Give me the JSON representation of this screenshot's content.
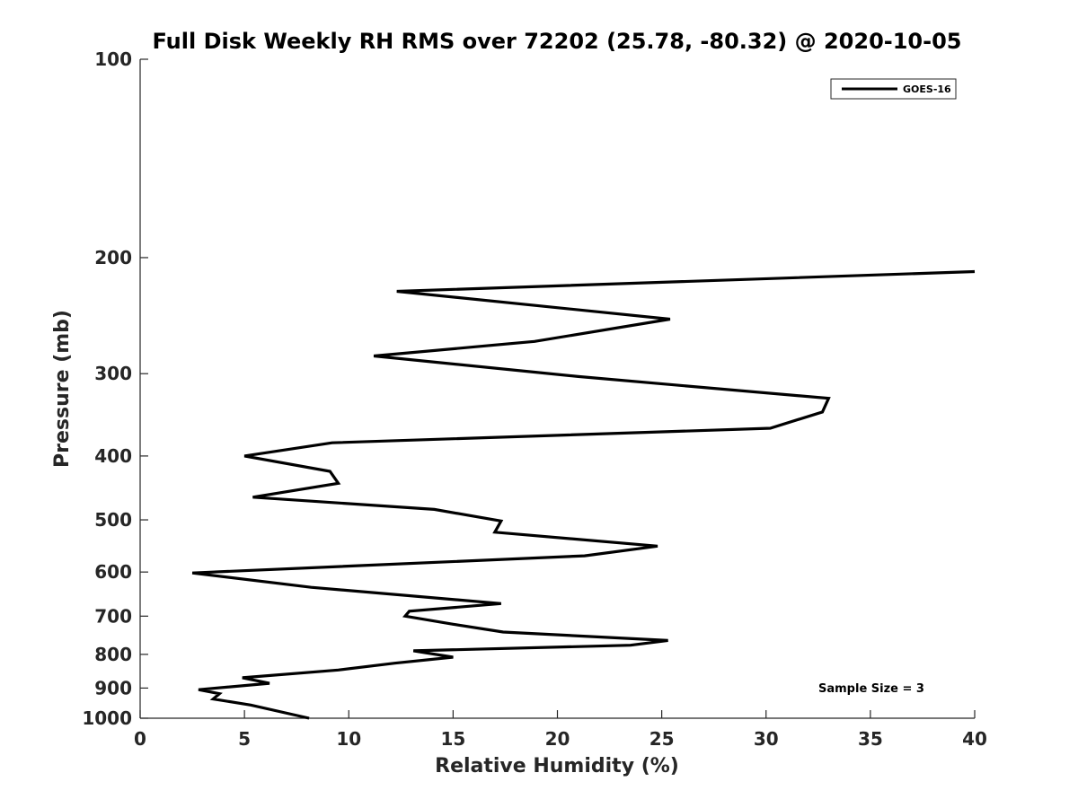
{
  "chart_data": {
    "type": "line",
    "title": "Full Disk Weekly RH RMS over 72202 (25.78, -80.32) @ 2020-10-05",
    "xlabel": "Relative Humidity (%)",
    "ylabel": "Pressure (mb)",
    "xlim": [
      0,
      40
    ],
    "ylim": [
      100,
      1000
    ],
    "yscale": "log",
    "y_reversed": true,
    "xticks": [
      0,
      5,
      10,
      15,
      20,
      25,
      30,
      35,
      40
    ],
    "yticks": [
      100,
      200,
      300,
      400,
      500,
      600,
      700,
      800,
      900,
      1000
    ],
    "grid": false,
    "legend_position": "top-right",
    "series": [
      {
        "name": "GOES-16",
        "color": "#000000",
        "points": [
          [
            40.0,
            210
          ],
          [
            12.3,
            225
          ],
          [
            25.4,
            248
          ],
          [
            18.9,
            268
          ],
          [
            11.2,
            282
          ],
          [
            21.0,
            303
          ],
          [
            33.0,
            327
          ],
          [
            32.7,
            343
          ],
          [
            30.2,
            363
          ],
          [
            9.2,
            382
          ],
          [
            5.0,
            400
          ],
          [
            9.1,
            422
          ],
          [
            9.5,
            440
          ],
          [
            5.4,
            462
          ],
          [
            14.1,
            482
          ],
          [
            17.3,
            502
          ],
          [
            17.0,
            522
          ],
          [
            24.8,
            548
          ],
          [
            21.3,
            567
          ],
          [
            2.5,
            602
          ],
          [
            8.2,
            633
          ],
          [
            17.3,
            670
          ],
          [
            12.9,
            688
          ],
          [
            12.7,
            700
          ],
          [
            15.0,
            720
          ],
          [
            17.4,
            740
          ],
          [
            25.3,
            762
          ],
          [
            23.5,
            775
          ],
          [
            13.1,
            790
          ],
          [
            15.0,
            808
          ],
          [
            12.2,
            825
          ],
          [
            9.5,
            845
          ],
          [
            4.9,
            868
          ],
          [
            6.2,
            885
          ],
          [
            2.8,
            905
          ],
          [
            3.8,
            918
          ],
          [
            3.5,
            935
          ],
          [
            5.3,
            955
          ],
          [
            8.1,
            1000
          ]
        ]
      }
    ],
    "annotations": [
      "Sample Size = 3"
    ]
  }
}
